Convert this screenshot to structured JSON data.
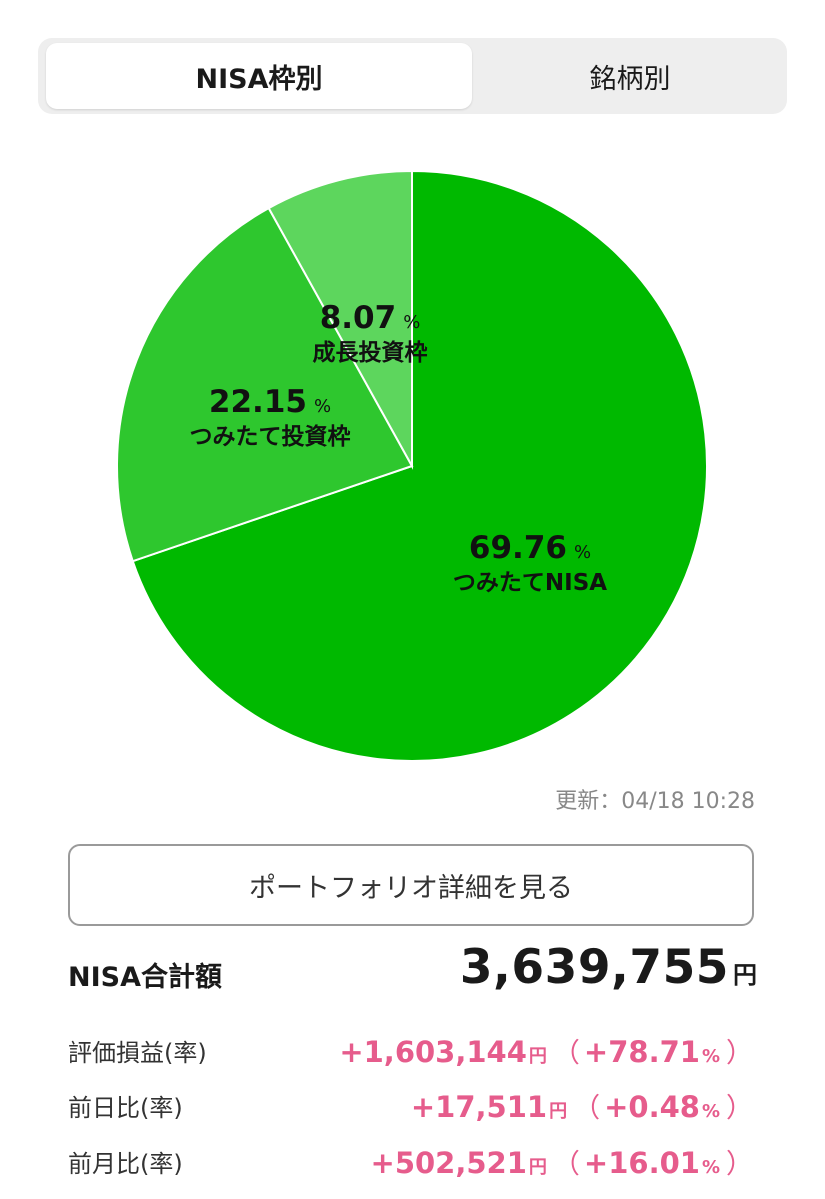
{
  "tabs": {
    "items": [
      {
        "label": "NISA枠別",
        "active": true
      },
      {
        "label": "銘柄別",
        "active": false
      }
    ]
  },
  "colors": {
    "slices": [
      "#00b900",
      "#2ec72e",
      "#5dd65d"
    ],
    "accent_positive": "#e65c8c"
  },
  "chart_data": {
    "type": "pie",
    "slices": [
      {
        "label": "つみたてNISA",
        "value": 69.76,
        "value_text": "69.76",
        "unit": "%"
      },
      {
        "label": "つみたて投資枠",
        "value": 22.15,
        "value_text": "22.15",
        "unit": "%"
      },
      {
        "label": "成長投資枠",
        "value": 8.07,
        "value_text": "8.07",
        "unit": "%"
      }
    ]
  },
  "updated": "更新：04/18 10:28",
  "detail_button": "ポートフォリオ詳細を見る",
  "summary": {
    "total_label": "NISA合計額",
    "total_value": "3,639,755",
    "total_unit": "円",
    "rows": [
      {
        "label": "評価損益(率)",
        "amount": "+1,603,144",
        "unit": "円",
        "rate": "+78.71",
        "rate_unit": "%"
      },
      {
        "label": "前日比(率)",
        "amount": "+17,511",
        "unit": "円",
        "rate": "+0.48",
        "rate_unit": "%"
      },
      {
        "label": "前月比(率)",
        "amount": "+502,521",
        "unit": "円",
        "rate": "+16.01",
        "rate_unit": "%"
      }
    ],
    "paren_open": "（",
    "paren_close": "）"
  }
}
